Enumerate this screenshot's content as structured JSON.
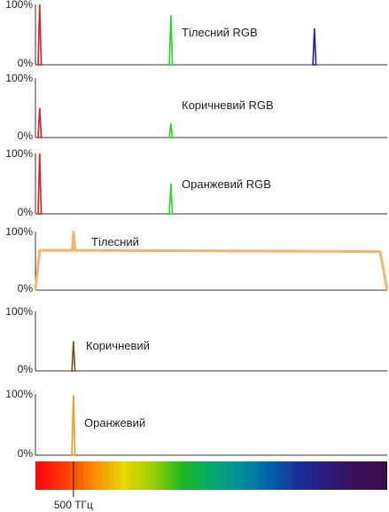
{
  "axis_ticks": {
    "top": "100%",
    "bottom": "0%"
  },
  "frequency_label": "500 ТГц",
  "colors": {
    "red": "#e8191d",
    "green": "#22d622",
    "blue": "#1a1ad0",
    "skin": "#f9b36a",
    "brown": "#7a4d14",
    "orange": "#f3951f",
    "axis": "#333333",
    "spectrum": [
      "#ff0010",
      "#ff3a00",
      "#ff8a00",
      "#e8d800",
      "#9bd000",
      "#1fb81f",
      "#00a870",
      "#008f9a",
      "#0061a8",
      "#1a2d9b",
      "#2b1a7a",
      "#3c0f58",
      "#3a0a48"
    ]
  },
  "panels": [
    {
      "label": "Тілесний RGB",
      "kind": "spikes",
      "spikes": [
        {
          "x": 0.012,
          "h": 1.0,
          "c": "red"
        },
        {
          "x": 0.385,
          "h": 0.82,
          "c": "green"
        },
        {
          "x": 0.793,
          "h": 0.6,
          "c": "blue"
        }
      ]
    },
    {
      "label": "Коричневий RGB",
      "kind": "spikes",
      "spikes": [
        {
          "x": 0.012,
          "h": 0.5,
          "c": "red"
        },
        {
          "x": 0.385,
          "h": 0.24,
          "c": "green"
        }
      ]
    },
    {
      "label": "Оранжевий RGB",
      "kind": "spikes",
      "spikes": [
        {
          "x": 0.012,
          "h": 1.0,
          "c": "red"
        },
        {
          "x": 0.385,
          "h": 0.5,
          "c": "green"
        }
      ]
    },
    {
      "label": "Тілесний",
      "kind": "curve",
      "c": "skin",
      "points": [
        [
          0,
          0
        ],
        [
          0.012,
          0.68
        ],
        [
          0.105,
          0.68
        ],
        [
          0.108,
          1.0
        ],
        [
          0.113,
          0.68
        ],
        [
          0.98,
          0.66
        ],
        [
          1.0,
          0
        ]
      ]
    },
    {
      "label": "Коричневий",
      "kind": "spikes",
      "spikes": [
        {
          "x": 0.108,
          "h": 0.5,
          "c": "brown"
        }
      ]
    },
    {
      "label": "Оранжевий",
      "kind": "spikes",
      "spikes": [
        {
          "x": 0.108,
          "h": 0.98,
          "c": "orange"
        }
      ]
    }
  ]
}
